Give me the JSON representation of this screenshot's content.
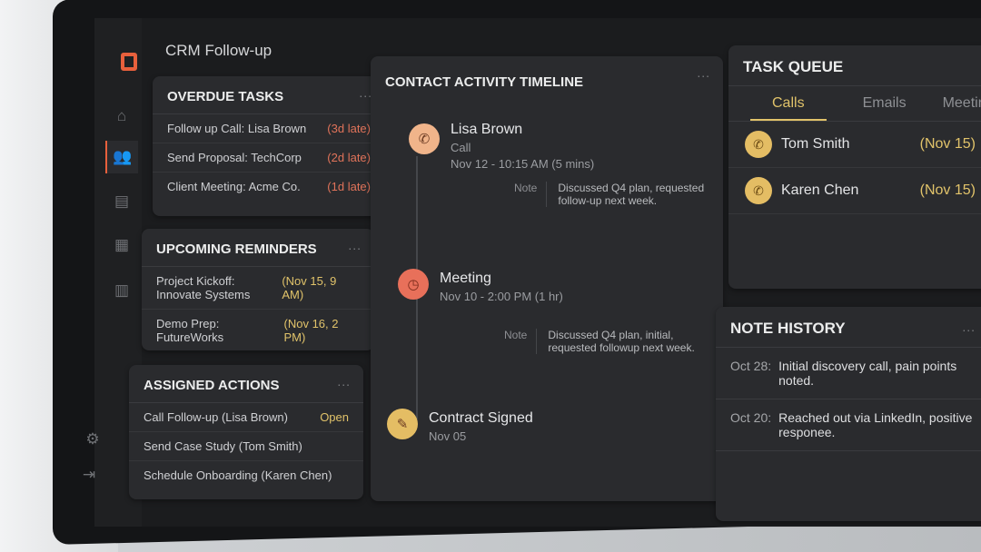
{
  "app": {
    "title": "CRM Follow-up"
  },
  "sidebar": {
    "items": [
      {
        "name": "home",
        "icon": "⌂"
      },
      {
        "name": "contacts",
        "icon": "👥"
      },
      {
        "name": "calendar",
        "icon": "▤"
      },
      {
        "name": "schedule",
        "icon": "▦"
      },
      {
        "name": "reports",
        "icon": "▥"
      }
    ],
    "bottom": [
      {
        "name": "settings",
        "icon": "⚙"
      },
      {
        "name": "logout",
        "icon": "⇥"
      }
    ]
  },
  "overdue": {
    "title": "OVERDUE TASKS",
    "more": "...",
    "items": [
      {
        "label": "Follow up Call: Lisa Brown",
        "status": "(3d late)"
      },
      {
        "label": "Send Proposal: TechCorp",
        "status": "(2d late)"
      },
      {
        "label": "Client Meeting: Acme Co.",
        "status": "(1d late)"
      }
    ]
  },
  "reminders": {
    "title": "UPCOMING REMINDERS",
    "more": "...",
    "items": [
      {
        "label": "Project Kickoff: Innovate Systems",
        "when": "(Nov 15, 9 AM)"
      },
      {
        "label": "Demo Prep: FutureWorks",
        "when": "(Nov 16, 2 PM)"
      }
    ]
  },
  "actions": {
    "title": "ASSIGNED ACTIONS",
    "more": "...",
    "items": [
      {
        "label": "Call Follow-up (Lisa Brown)",
        "status": "Open"
      },
      {
        "label": "Send Case Study (Tom Smith)",
        "status": ""
      },
      {
        "label": "Schedule Onboarding (Karen Chen)",
        "status": ""
      }
    ]
  },
  "timeline": {
    "title": "CONTACT ACTIVITY TIMELINE",
    "more": "...",
    "events": [
      {
        "title": "Lisa Brown",
        "type": "Call",
        "when": "Nov 12 - 10:15 AM (5 mins)",
        "note_label": "Note",
        "note": "Discussed Q4 plan, requested follow-up next week.",
        "icon": "phone",
        "color": "#f0b48a"
      },
      {
        "title": "Meeting",
        "type": "",
        "when": "Nov 10 - 2:00 PM (1 hr)",
        "note_label": "Note",
        "note": "Discussed Q4 plan, initial, requested followup next week.",
        "icon": "clock",
        "color": "#e8705a"
      },
      {
        "title": "Contract Signed",
        "type": "",
        "when": "Nov 05",
        "icon": "document-sign",
        "color": "#e4bd64"
      }
    ]
  },
  "queue": {
    "title": "TASK QUEUE",
    "more": "...",
    "tabs": [
      "Calls",
      "Emails",
      "Meetings"
    ],
    "active_tab": "Calls",
    "items": [
      {
        "name": "Tom Smith",
        "when": "(Nov 15)"
      },
      {
        "name": "Karen Chen",
        "when": "(Nov 15)"
      }
    ]
  },
  "notes": {
    "title": "NOTE HISTORY",
    "more": "...",
    "items": [
      {
        "date": "Oct 28:",
        "text": "Initial discovery call, pain points noted."
      },
      {
        "date": "Oct 20:",
        "text": "Reached out via LinkedIn, positive responee."
      }
    ]
  },
  "colors": {
    "accent": "#e8603c",
    "late": "#e0735a",
    "gold": "#e1c36a"
  }
}
